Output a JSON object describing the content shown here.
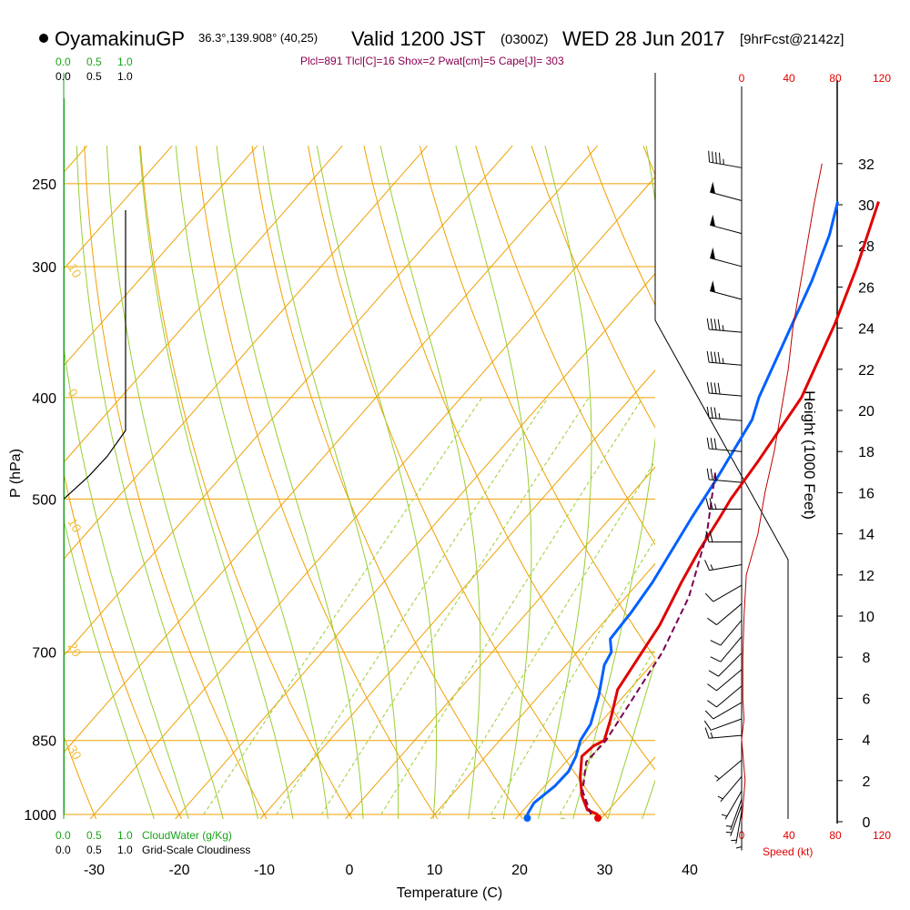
{
  "title": {
    "station": "OyamakinuGP",
    "coords": "36.3°,139.908° (40,25)",
    "valid": "Valid 1200 JST",
    "utc": "(0300Z)",
    "date": "WED 28 Jun 2017",
    "forecast": "[9hrFcst@2142z]"
  },
  "indices": "Plcl=891 Tlcl[C]=16 Shox=2 Pwat[cm]=5 Cape[J]= 303",
  "chart_data": {
    "type": "line",
    "subtype": "skew-t log-p sounding",
    "xlabel": "Temperature (C)",
    "ylabel": "P (hPa)",
    "right_ylabel": "Height (1000 Feet)",
    "x_ticks": [
      -30,
      -20,
      -10,
      0,
      10,
      20,
      30,
      40
    ],
    "x_tick_labels": [
      "-30",
      "-20",
      "-10",
      "0",
      "10",
      "20",
      "30",
      "40"
    ],
    "p_ticks": [
      250,
      300,
      400,
      500,
      700,
      850,
      1000
    ],
    "p_tick_labels": [
      "250",
      "300",
      "400",
      "500",
      "700",
      "850",
      "1000"
    ],
    "height_ticks": [
      0,
      2,
      4,
      6,
      8,
      10,
      12,
      14,
      16,
      18,
      20,
      22,
      24,
      26,
      28,
      30,
      32
    ],
    "height_tick_labels": [
      "0",
      "2",
      "4",
      "6",
      "8",
      "10",
      "12",
      "14",
      "16",
      "18",
      "20",
      "22",
      "24",
      "26",
      "28",
      "30",
      "32"
    ],
    "speed_ticks": [
      0,
      40,
      80,
      120
    ],
    "speed_tick_labels": [
      "0",
      "40",
      "80",
      "120"
    ],
    "speed_label": "Speed (kt)",
    "cloud_water_scale": [
      "0.0",
      "0.5",
      "1.0"
    ],
    "cloud_water_label": "CloudWater (g/Kg)",
    "cloudiness_scale": [
      "0.0",
      "0.5",
      "1.0"
    ],
    "cloudiness_label": "Grid-Scale Cloudiness",
    "isotherm_labels": [
      {
        "text": "0",
        "t": 0,
        "p": 340
      },
      {
        "text": "10",
        "t": 10,
        "p": 430
      },
      {
        "text": "20",
        "t": 20,
        "p": 470
      },
      {
        "text": "30",
        "t": 30,
        "p": 540
      }
    ],
    "theta_labels": [
      {
        "text": "10",
        "p": 300
      },
      {
        "text": "0",
        "p": 395
      },
      {
        "text": "10",
        "p": 525
      },
      {
        "text": "20",
        "p": 690
      },
      {
        "text": "30",
        "p": 865
      }
    ],
    "mixing_ratio_labels": [
      "1",
      "2",
      "3",
      "5",
      "8",
      "12",
      "20"
    ],
    "series": [
      {
        "name": "Temperature",
        "color": "#e00000",
        "points": [
          [
            29.2,
            1000
          ],
          [
            27.5,
            990
          ],
          [
            25.4,
            960
          ],
          [
            23.2,
            920
          ],
          [
            21.3,
            880
          ],
          [
            21.6,
            860
          ],
          [
            22.3,
            850
          ],
          [
            20.8,
            810
          ],
          [
            18.6,
            760
          ],
          [
            17.6,
            700
          ],
          [
            16.9,
            660
          ],
          [
            15.0,
            600
          ],
          [
            13.8,
            560
          ],
          [
            12.8,
            520
          ],
          [
            12.2,
            500
          ],
          [
            11.5,
            460
          ],
          [
            10.0,
            400
          ],
          [
            6.3,
            340
          ],
          [
            3.0,
            300
          ],
          [
            -1.2,
            260
          ]
        ]
      },
      {
        "name": "Dewpoint",
        "color": "#0060ff",
        "points": [
          [
            20.9,
            1000
          ],
          [
            20.5,
            975
          ],
          [
            21.2,
            940
          ],
          [
            21.3,
            910
          ],
          [
            20.6,
            880
          ],
          [
            19.5,
            850
          ],
          [
            19.0,
            820
          ],
          [
            17.0,
            770
          ],
          [
            14.5,
            720
          ],
          [
            14.0,
            700
          ],
          [
            12.5,
            680
          ],
          [
            12.2,
            640
          ],
          [
            11.6,
            600
          ],
          [
            9.5,
            520
          ],
          [
            8.5,
            480
          ],
          [
            6.5,
            420
          ],
          [
            5.0,
            400
          ],
          [
            -0.8,
            310
          ],
          [
            -3.5,
            280
          ],
          [
            -6.0,
            260
          ]
        ]
      },
      {
        "name": "Parcel",
        "color": "#7a0050",
        "dashed": true,
        "points": [
          [
            28.4,
            1000
          ],
          [
            25.0,
            950
          ],
          [
            22.4,
            891
          ],
          [
            22.5,
            850
          ],
          [
            21.4,
            780
          ],
          [
            20.0,
            700
          ],
          [
            17.4,
            620
          ],
          [
            13.0,
            540
          ],
          [
            7.5,
            470
          ]
        ]
      }
    ],
    "surface_points": [
      {
        "name": "surface-temperature",
        "t": 29.2,
        "p": 1000,
        "color": "#e00000"
      },
      {
        "name": "surface-dewpoint",
        "t": 20.9,
        "p": 1000,
        "color": "#0060ff"
      }
    ],
    "wind_speed_profile_kt": [
      [
        0,
        0
      ],
      [
        2,
        3
      ],
      [
        4,
        0
      ],
      [
        5,
        2
      ],
      [
        6,
        1
      ],
      [
        8,
        1
      ],
      [
        10,
        2
      ],
      [
        12,
        4
      ],
      [
        14,
        14
      ],
      [
        16,
        20
      ],
      [
        18,
        28
      ],
      [
        20,
        34
      ],
      [
        22,
        40
      ],
      [
        24,
        44
      ],
      [
        26,
        50
      ],
      [
        28,
        56
      ],
      [
        30,
        62
      ],
      [
        32,
        69
      ]
    ],
    "wind_barbs": [
      {
        "h": 0.2,
        "dir": 180,
        "spd": 5
      },
      {
        "h": 0.5,
        "dir": 190,
        "spd": 5
      },
      {
        "h": 0.8,
        "dir": 200,
        "spd": 5
      },
      {
        "h": 1.1,
        "dir": 200,
        "spd": 5
      },
      {
        "h": 1.5,
        "dir": 210,
        "spd": 5
      },
      {
        "h": 2.2,
        "dir": 220,
        "spd": 5
      },
      {
        "h": 3.0,
        "dir": 230,
        "spd": 5
      },
      {
        "h": 4.2,
        "dir": 265,
        "spd": 15
      },
      {
        "h": 5.0,
        "dir": 250,
        "spd": 10
      },
      {
        "h": 5.8,
        "dir": 240,
        "spd": 10
      },
      {
        "h": 6.6,
        "dir": 230,
        "spd": 10
      },
      {
        "h": 7.4,
        "dir": 230,
        "spd": 10
      },
      {
        "h": 8.2,
        "dir": 225,
        "spd": 10
      },
      {
        "h": 9.0,
        "dir": 220,
        "spd": 10
      },
      {
        "h": 9.8,
        "dir": 220,
        "spd": 10
      },
      {
        "h": 10.6,
        "dir": 230,
        "spd": 10
      },
      {
        "h": 11.5,
        "dir": 240,
        "spd": 10
      },
      {
        "h": 12.5,
        "dir": 260,
        "spd": 15
      },
      {
        "h": 13.6,
        "dir": 270,
        "spd": 20
      },
      {
        "h": 15.2,
        "dir": 270,
        "spd": 25
      },
      {
        "h": 16.5,
        "dir": 275,
        "spd": 25
      },
      {
        "h": 18.0,
        "dir": 275,
        "spd": 30
      },
      {
        "h": 19.5,
        "dir": 275,
        "spd": 35
      },
      {
        "h": 20.7,
        "dir": 275,
        "spd": 40
      },
      {
        "h": 22.2,
        "dir": 275,
        "spd": 45
      },
      {
        "h": 23.8,
        "dir": 275,
        "spd": 45
      },
      {
        "h": 25.4,
        "dir": 285,
        "spd": 50
      },
      {
        "h": 27.0,
        "dir": 285,
        "spd": 50
      },
      {
        "h": 28.6,
        "dir": 285,
        "spd": 50
      },
      {
        "h": 30.2,
        "dir": 285,
        "spd": 50
      },
      {
        "h": 31.8,
        "dir": 280,
        "spd": 45
      }
    ],
    "cloudiness_profile": [
      [
        1000,
        0
      ],
      [
        500,
        0
      ],
      [
        430,
        0.0
      ],
      [
        400,
        1.0
      ],
      [
        260,
        1.0
      ]
    ],
    "colors": {
      "isobar": "#f0a000",
      "isotherm": "#f0a000",
      "dry_adiabat": "#9acd32",
      "moist_adiabat": "#9acd32",
      "mixing_ratio": "#9acd32",
      "cloud_water": "#1aa31a",
      "wind_speed": "#c00000"
    }
  }
}
